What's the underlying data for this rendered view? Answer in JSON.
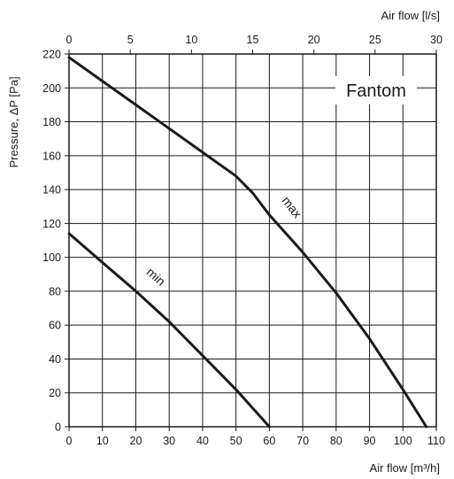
{
  "chart_data": {
    "type": "line",
    "title": "Fantom",
    "xlabel": "Air flow [m³/h]",
    "x2label": "Air flow [l/s]",
    "ylabel": "Pressure, ΔP [Pa]",
    "xlim": [
      0,
      110
    ],
    "x2lim": [
      0,
      30
    ],
    "ylim": [
      0,
      220
    ],
    "x_ticks": [
      "0",
      "10",
      "20",
      "30",
      "40",
      "50",
      "60",
      "70",
      "80",
      "90",
      "100",
      "110"
    ],
    "x2_ticks": [
      "0",
      "5",
      "10",
      "15",
      "20",
      "25",
      "30"
    ],
    "y_ticks": [
      "0",
      "20",
      "40",
      "60",
      "80",
      "100",
      "120",
      "140",
      "160",
      "180",
      "200",
      "220"
    ],
    "grid": true,
    "series": [
      {
        "name": "max",
        "x": [
          0,
          10,
          20,
          30,
          40,
          50,
          55,
          60,
          70,
          80,
          90,
          100,
          107
        ],
        "y": [
          218,
          204,
          190,
          176,
          162,
          148,
          138,
          125,
          103,
          79,
          52,
          22,
          0
        ]
      },
      {
        "name": "min",
        "x": [
          0,
          10,
          20,
          30,
          40,
          50,
          60
        ],
        "y": [
          114,
          97,
          80,
          62,
          42,
          22,
          0
        ]
      }
    ]
  }
}
